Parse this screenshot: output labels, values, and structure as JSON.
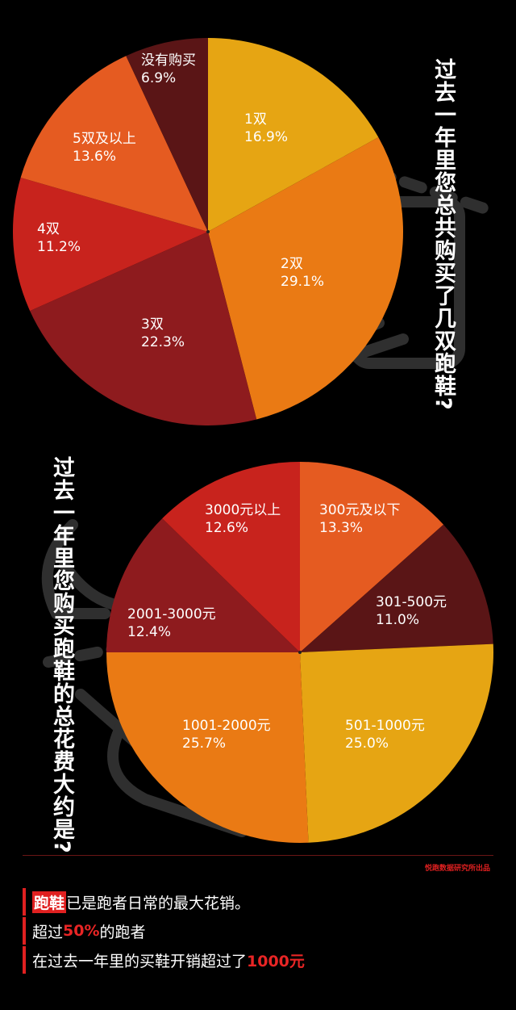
{
  "chart_data": [
    {
      "type": "pie",
      "title": "过去一年里您总共购买了几双跑鞋?",
      "categories": [
        "1双",
        "2双",
        "3双",
        "4双",
        "5双及以上",
        "没有购买"
      ],
      "values": [
        16.9,
        29.1,
        22.3,
        11.2,
        13.6,
        6.9
      ],
      "value_labels": [
        "16.9%",
        "29.1%",
        "22.3%",
        "11.2%",
        "13.6%",
        "6.9%"
      ],
      "colors": [
        "#e6a513",
        "#ea7a14",
        "#8e1b1e",
        "#c8231d",
        "#e55b21",
        "#5a1516"
      ]
    },
    {
      "type": "pie",
      "title": "过去一年里您购买跑鞋的总花费大约是?",
      "categories": [
        "300元及以下",
        "301-500元",
        "501-1000元",
        "1001-2000元",
        "2001-3000元",
        "3000元以上"
      ],
      "values": [
        13.3,
        11.0,
        25.0,
        25.7,
        12.4,
        12.6
      ],
      "value_labels": [
        "13.3%",
        "11.0%",
        "25.0%",
        "25.7%",
        "12.4%",
        "12.6%"
      ],
      "colors": [
        "#e55b21",
        "#5a1516",
        "#e6a513",
        "#ea7a14",
        "#8e1b1e",
        "#c8231d"
      ]
    }
  ],
  "credit": "悦跑数据研究所出品",
  "caption": {
    "line1_highlight": "跑鞋",
    "line1_rest": "已是跑者日常的最大花销。",
    "line2_pre": "超过",
    "line2_highlight": "50%",
    "line2_post": "的跑者",
    "line3_pre": "在过去一年里的买鞋开销超过了",
    "line3_highlight": "1000元"
  }
}
